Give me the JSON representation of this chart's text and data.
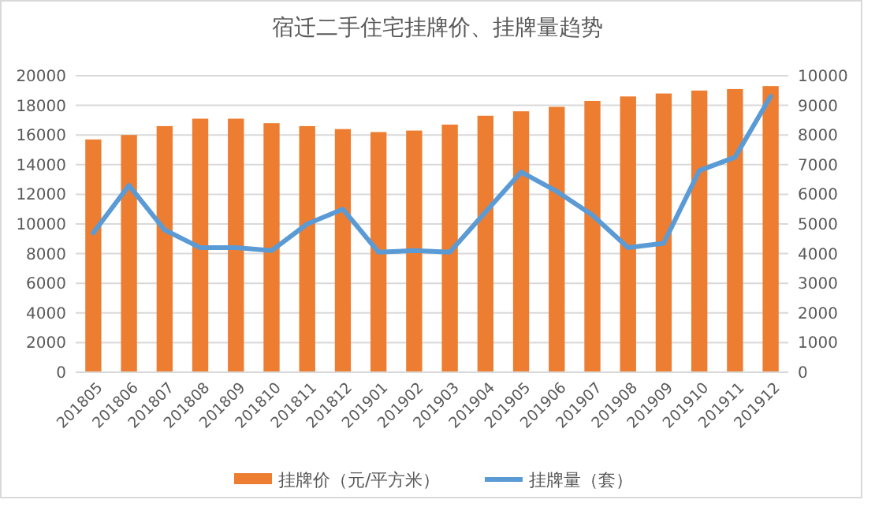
{
  "chart_data": {
    "type": "bar",
    "title": "宿迁二手住宅挂牌价、挂牌量趋势",
    "categories": [
      "201805",
      "201806",
      "201807",
      "201808",
      "201809",
      "201810",
      "201811",
      "201812",
      "201901",
      "201902",
      "201903",
      "201904",
      "201905",
      "201906",
      "201907",
      "201908",
      "201909",
      "201910",
      "201911",
      "201912"
    ],
    "series": [
      {
        "name": "挂牌价（元/平方米）",
        "color": "#ed7d31",
        "values": [
          15700,
          16000,
          16600,
          17100,
          17100,
          16800,
          16600,
          16400,
          16200,
          16300,
          16700,
          17300,
          17600,
          17900,
          18300,
          18600,
          18800,
          19000,
          19100,
          19300
        ]
      },
      {
        "name": "挂牌量（套）",
        "type": "line",
        "axis": "y2",
        "color": "#5b9bd5",
        "values": [
          4700,
          6300,
          4800,
          4200,
          4200,
          4100,
          5000,
          5500,
          4050,
          4100,
          4050,
          5400,
          6750,
          6100,
          5300,
          4200,
          4350,
          6800,
          7250,
          9300
        ]
      }
    ],
    "ylim": [
      0,
      20000
    ],
    "yticks": [
      0,
      2000,
      4000,
      6000,
      8000,
      10000,
      12000,
      14000,
      16000,
      18000,
      20000
    ],
    "y2lim": [
      0,
      10000
    ],
    "y2ticks": [
      0,
      1000,
      2000,
      3000,
      4000,
      5000,
      6000,
      7000,
      8000,
      9000,
      10000
    ],
    "grid": "y",
    "legend": "bottom",
    "marker": "none",
    "line_style": "solid"
  }
}
